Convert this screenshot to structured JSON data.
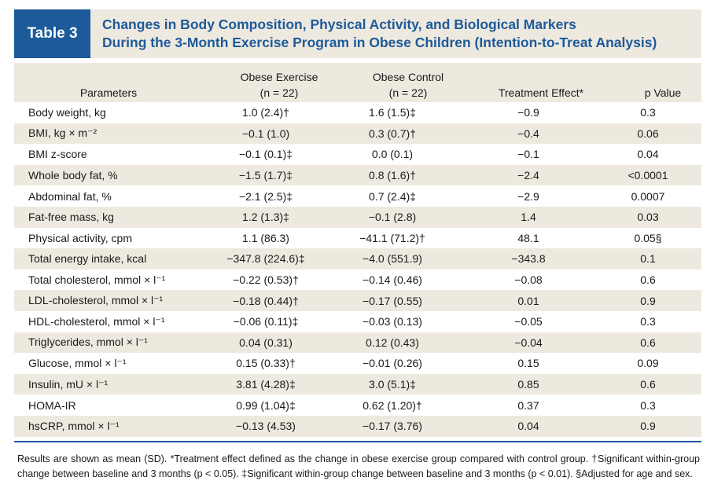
{
  "header": {
    "tag": "Table 3",
    "title_line1": "Changes in Body Composition, Physical Activity, and Biological Markers",
    "title_line2": "During the 3-Month Exercise Program in Obese Children (Intention-to-Treat Analysis)"
  },
  "columns": {
    "parameters": "Parameters",
    "exercise": "Obese Exercise",
    "exercise_n": "(n = 22)",
    "control": "Obese Control",
    "control_n": "(n = 22)",
    "effect": "Treatment Effect*",
    "pvalue": "p Value"
  },
  "rows": [
    {
      "param": "Body weight, kg",
      "exercise": "1.0 (2.4)†",
      "control": "1.6 (1.5)‡",
      "effect": "−0.9",
      "p": "0.3"
    },
    {
      "param": "BMI, kg × m⁻²",
      "exercise": "−0.1 (1.0)",
      "control": "0.3 (0.7)†",
      "effect": "−0.4",
      "p": "0.06"
    },
    {
      "param": "BMI z-score",
      "exercise": "−0.1 (0.1)‡",
      "control": "0.0 (0.1)",
      "effect": "−0.1",
      "p": "0.04"
    },
    {
      "param": "Whole body fat, %",
      "exercise": "−1.5 (1.7)‡",
      "control": "0.8 (1.6)†",
      "effect": "−2.4",
      "p": "<0.0001"
    },
    {
      "param": "Abdominal fat, %",
      "exercise": "−2.1 (2.5)‡",
      "control": "0.7 (2.4)‡",
      "effect": "−2.9",
      "p": "0.0007"
    },
    {
      "param": "Fat-free mass, kg",
      "exercise": "1.2 (1.3)‡",
      "control": "−0.1 (2.8)",
      "effect": "1.4",
      "p": "0.03"
    },
    {
      "param": "Physical activity, cpm",
      "exercise": "1.1 (86.3)",
      "control": "−41.1 (71.2)†",
      "effect": "48.1",
      "p": "0.05§"
    },
    {
      "param": "Total energy intake, kcal",
      "exercise": "−347.8 (224.6)‡",
      "control": "−4.0 (551.9)",
      "effect": "−343.8",
      "p": "0.1"
    },
    {
      "param": "Total cholesterol, mmol × l⁻¹",
      "exercise": "−0.22 (0.53)†",
      "control": "−0.14 (0.46)",
      "effect": "−0.08",
      "p": "0.6"
    },
    {
      "param": "LDL-cholesterol, mmol × l⁻¹",
      "exercise": "−0.18 (0.44)†",
      "control": "−0.17 (0.55)",
      "effect": "0.01",
      "p": "0.9"
    },
    {
      "param": "HDL-cholesterol, mmol × l⁻¹",
      "exercise": "−0.06 (0.11)‡",
      "control": "−0.03 (0.13)",
      "effect": "−0.05",
      "p": "0.3"
    },
    {
      "param": "Triglycerides, mmol × l⁻¹",
      "exercise": "0.04 (0.31)",
      "control": "0.12 (0.43)",
      "effect": "−0.04",
      "p": "0.6"
    },
    {
      "param": "Glucose, mmol × l⁻¹",
      "exercise": "0.15 (0.33)†",
      "control": "−0.01 (0.26)",
      "effect": "0.15",
      "p": "0.09"
    },
    {
      "param": "Insulin, mU × l⁻¹",
      "exercise": "3.81 (4.28)‡",
      "control": "3.0 (5.1)‡",
      "effect": "0.85",
      "p": "0.6"
    },
    {
      "param": "HOMA-IR",
      "exercise": "0.99 (1.04)‡",
      "control": "0.62 (1.20)†",
      "effect": "0.37",
      "p": "0.3"
    },
    {
      "param": "hsCRP, mmol × l⁻¹",
      "exercise": "−0.13 (4.53)",
      "control": "−0.17 (3.76)",
      "effect": "0.04",
      "p": "0.9"
    }
  ],
  "footnote": "Results are shown as mean (SD). *Treatment effect defined as the change in obese exercise group compared with control group. †Significant within-group change between baseline and 3 months (p < 0.05). ‡Significant within-group change between baseline and 3 months (p < 0.01). §Adjusted for age and sex.",
  "colors": {
    "accent": "#1d5a9a",
    "band": "#eee9df"
  }
}
